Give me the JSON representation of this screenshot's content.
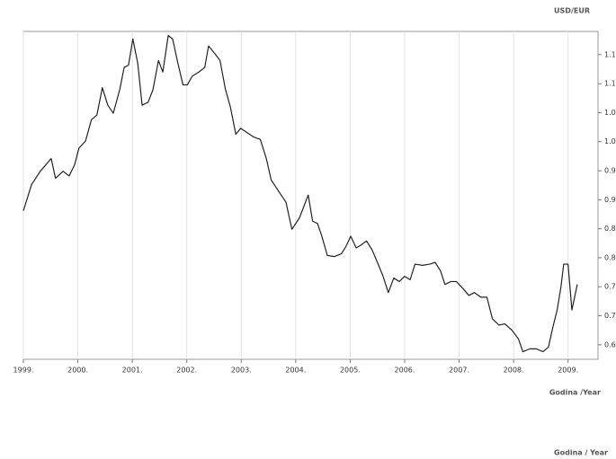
{
  "chart_data": {
    "type": "line",
    "title": "USD/EUR",
    "x_label": "Godina /Year",
    "footer": "Godina / Year",
    "grid": "x",
    "xlim": [
      1999,
      2009.55
    ],
    "ylim": [
      0.625,
      1.19
    ],
    "xticks": [
      {
        "value": 1999,
        "label": "1999."
      },
      {
        "value": 2000,
        "label": "2000."
      },
      {
        "value": 2001,
        "label": "2001."
      },
      {
        "value": 2002,
        "label": "2002."
      },
      {
        "value": 2003,
        "label": "2003."
      },
      {
        "value": 2004,
        "label": "2004."
      },
      {
        "value": 2005,
        "label": "2005."
      },
      {
        "value": 2006,
        "label": "2006."
      },
      {
        "value": 2007,
        "label": "2007."
      },
      {
        "value": 2008,
        "label": "2008."
      },
      {
        "value": 2009,
        "label": "2009."
      }
    ],
    "yticks": [
      0.65,
      {
        "value": 0.7,
        "label": "0.70"
      },
      0.75,
      {
        "value": 0.8,
        "label": "0.80"
      },
      0.85,
      {
        "value": 0.9,
        "label": "0.90"
      },
      0.95,
      {
        "value": 1,
        "label": "1.00"
      },
      1.05,
      {
        "value": 1.1,
        "label": "1.10"
      },
      1.15
    ],
    "series": [
      {
        "name": "USD/EUR",
        "color": "#222222",
        "x": [
          1999.0,
          1999.15,
          1999.31,
          1999.51,
          1999.59,
          1999.73,
          1999.84,
          1999.94,
          2000.02,
          2000.14,
          2000.25,
          2000.35,
          2000.45,
          2000.55,
          2000.65,
          2000.77,
          2000.85,
          2000.93,
          2001.01,
          2001.1,
          2001.18,
          2001.29,
          2001.38,
          2001.48,
          2001.56,
          2001.66,
          2001.74,
          2001.83,
          2001.93,
          2002.01,
          2002.1,
          2002.22,
          2002.33,
          2002.4,
          2002.53,
          2002.61,
          2002.71,
          2002.8,
          2002.9,
          2002.99,
          2003.1,
          2003.23,
          2003.35,
          2003.46,
          2003.55,
          2003.69,
          2003.82,
          2003.93,
          2004.07,
          2004.18,
          2004.23,
          2004.31,
          2004.4,
          2004.48,
          2004.58,
          2004.71,
          2004.84,
          2004.92,
          2005.01,
          2005.11,
          2005.2,
          2005.3,
          2005.4,
          2005.5,
          2005.6,
          2005.7,
          2005.8,
          2005.9,
          2006.0,
          2006.1,
          2006.19,
          2006.33,
          2006.46,
          2006.56,
          2006.66,
          2006.74,
          2006.85,
          2006.95,
          2007.07,
          2007.18,
          2007.28,
          2007.4,
          2007.51,
          2007.61,
          2007.73,
          2007.84,
          2007.97,
          2008.09,
          2008.17,
          2008.3,
          2008.42,
          2008.54,
          2008.64,
          2008.72,
          2008.8,
          2008.87,
          2008.92,
          2009.0,
          2009.07,
          2009.17
        ],
        "values": [
          0.881,
          0.926,
          0.949,
          0.971,
          0.937,
          0.949,
          0.941,
          0.96,
          0.989,
          1.001,
          1.038,
          1.046,
          1.093,
          1.063,
          1.049,
          1.09,
          1.128,
          1.132,
          1.177,
          1.135,
          1.063,
          1.068,
          1.09,
          1.14,
          1.12,
          1.183,
          1.177,
          1.138,
          1.098,
          1.098,
          1.113,
          1.12,
          1.128,
          1.165,
          1.15,
          1.14,
          1.09,
          1.06,
          1.013,
          1.023,
          1.016,
          1.008,
          1.004,
          0.971,
          0.934,
          0.914,
          0.896,
          0.849,
          0.869,
          0.896,
          0.908,
          0.863,
          0.859,
          0.837,
          0.804,
          0.802,
          0.807,
          0.819,
          0.837,
          0.817,
          0.822,
          0.829,
          0.814,
          0.792,
          0.769,
          0.74,
          0.765,
          0.759,
          0.768,
          0.762,
          0.789,
          0.787,
          0.789,
          0.792,
          0.777,
          0.754,
          0.759,
          0.759,
          0.747,
          0.735,
          0.74,
          0.732,
          0.732,
          0.695,
          0.684,
          0.686,
          0.675,
          0.66,
          0.638,
          0.643,
          0.643,
          0.638,
          0.646,
          0.68,
          0.71,
          0.75,
          0.789,
          0.789,
          0.71,
          0.754
        ]
      }
    ]
  }
}
